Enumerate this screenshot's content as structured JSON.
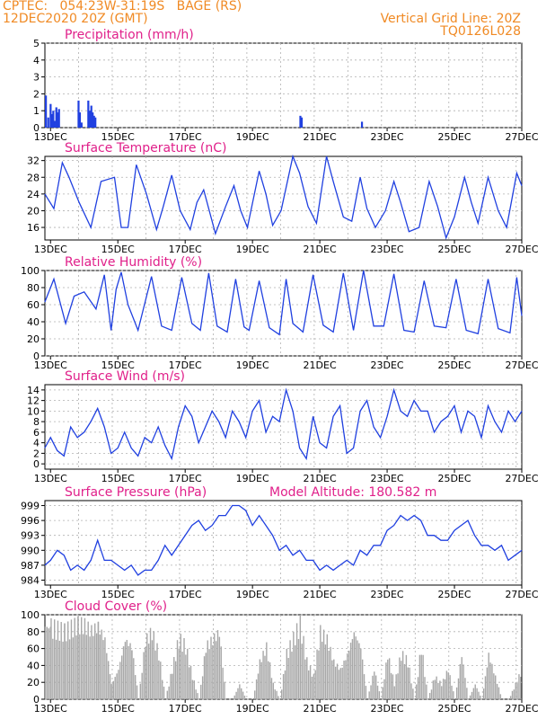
{
  "header": {
    "line1": "CPTEC:   054:23W-31:19S   BAGE (RS)",
    "line2": "12DEC2020 20Z (GMT)",
    "vertical_grid": "Vertical Grid Line: 20Z",
    "code": "TQ0126L028"
  },
  "colors": {
    "header": "#f08a24",
    "title": "#e0208a",
    "series": "#2040e0",
    "cloud": "#a8a8a8",
    "grid": "#b0b0b0"
  },
  "time_axis": {
    "start_day": 12.833,
    "end_day": 27.0,
    "tick_labels": [
      "13DEC",
      "15DEC",
      "17DEC",
      "19DEC",
      "21DEC",
      "23DEC",
      "25DEC",
      "27DEC"
    ],
    "tick_days": [
      13,
      15,
      17,
      19,
      21,
      23,
      25,
      27
    ]
  },
  "chart_data": [
    {
      "type": "bar",
      "title": "Precipitation (mm/h)",
      "ylim": [
        0,
        5
      ],
      "yticks": [
        "0",
        "1",
        "2",
        "3",
        "4",
        "5"
      ],
      "x": [
        12.86,
        12.93,
        13.0,
        13.04,
        13.08,
        13.12,
        13.17,
        13.21,
        13.25,
        13.83,
        13.87,
        13.92,
        14.12,
        14.17,
        14.21,
        14.25,
        14.29,
        14.33,
        20.42,
        20.46,
        22.25
      ],
      "values": [
        1.9,
        0.6,
        1.4,
        0.8,
        1.0,
        0.4,
        1.2,
        0.9,
        1.1,
        1.6,
        0.9,
        0.3,
        1.6,
        1.0,
        1.3,
        0.9,
        0.7,
        0.6,
        0.7,
        0.6,
        0.35
      ]
    },
    {
      "type": "line",
      "title": "Surface Temperature (nC)",
      "ylim": [
        13,
        33
      ],
      "yticks": [
        "16",
        "20",
        "24",
        "28",
        "32"
      ],
      "x": [
        12.83,
        13.1,
        13.35,
        13.55,
        13.85,
        14.2,
        14.5,
        14.9,
        15.1,
        15.3,
        15.55,
        15.85,
        16.15,
        16.35,
        16.6,
        16.85,
        17.15,
        17.35,
        17.55,
        17.9,
        18.2,
        18.45,
        18.65,
        18.85,
        19.2,
        19.4,
        19.6,
        19.85,
        20.2,
        20.4,
        20.65,
        20.9,
        21.2,
        21.4,
        21.7,
        21.95,
        22.2,
        22.4,
        22.65,
        22.95,
        23.2,
        23.4,
        23.65,
        23.95,
        24.25,
        24.5,
        24.75,
        25.0,
        25.3,
        25.5,
        25.7,
        26.0,
        26.3,
        26.55,
        26.85,
        27.0
      ],
      "values": [
        24,
        20.5,
        31.5,
        28,
        22,
        16,
        27,
        28,
        16,
        16,
        31,
        24,
        15.5,
        21,
        28.5,
        20,
        15.5,
        22,
        25,
        14.5,
        21,
        26,
        20,
        16,
        29.5,
        24,
        16.5,
        20,
        33,
        29,
        21,
        17,
        33,
        27,
        18.5,
        17.5,
        28,
        20.5,
        16,
        20,
        27,
        22,
        15,
        16,
        27,
        21,
        13.5,
        18.5,
        28,
        22,
        17,
        28,
        20,
        16,
        29,
        26
      ]
    },
    {
      "type": "line",
      "title": "Relative Humidity (%)",
      "ylim": [
        0,
        100
      ],
      "yticks": [
        "0",
        "20",
        "40",
        "60",
        "80",
        "100"
      ],
      "x": [
        12.83,
        13.1,
        13.45,
        13.7,
        14.0,
        14.35,
        14.6,
        14.8,
        14.95,
        15.1,
        15.3,
        15.6,
        16.0,
        16.3,
        16.6,
        16.9,
        17.2,
        17.45,
        17.7,
        17.95,
        18.25,
        18.5,
        18.75,
        18.9,
        19.2,
        19.5,
        19.8,
        20.0,
        20.2,
        20.5,
        20.8,
        21.1,
        21.4,
        21.7,
        22.0,
        22.3,
        22.6,
        22.9,
        23.2,
        23.5,
        23.8,
        24.1,
        24.4,
        24.75,
        25.05,
        25.35,
        25.7,
        26.0,
        26.3,
        26.65,
        26.85,
        27.0
      ],
      "values": [
        63,
        90,
        38,
        70,
        75,
        55,
        95,
        30,
        78,
        98,
        60,
        30,
        93,
        35,
        30,
        92,
        38,
        30,
        97,
        35,
        28,
        90,
        34,
        30,
        88,
        33,
        25,
        90,
        38,
        28,
        95,
        36,
        28,
        97,
        30,
        100,
        35,
        35,
        96,
        30,
        28,
        88,
        35,
        33,
        90,
        30,
        26,
        90,
        32,
        27,
        92,
        47
      ]
    },
    {
      "type": "line",
      "title": "Surface Wind (m/s)",
      "ylim": [
        -1,
        15
      ],
      "yticks": [
        "0",
        "2",
        "4",
        "6",
        "8",
        "10",
        "12",
        "14"
      ],
      "x": [
        12.83,
        13.0,
        13.2,
        13.4,
        13.6,
        13.8,
        14.0,
        14.2,
        14.4,
        14.6,
        14.8,
        15.0,
        15.2,
        15.4,
        15.6,
        15.8,
        16.0,
        16.2,
        16.4,
        16.6,
        16.8,
        17.0,
        17.2,
        17.4,
        17.6,
        17.8,
        18.0,
        18.2,
        18.4,
        18.6,
        18.8,
        19.0,
        19.2,
        19.4,
        19.6,
        19.8,
        20.0,
        20.2,
        20.4,
        20.6,
        20.8,
        21.0,
        21.2,
        21.4,
        21.6,
        21.8,
        22.0,
        22.2,
        22.4,
        22.6,
        22.8,
        23.0,
        23.2,
        23.4,
        23.6,
        23.8,
        24.0,
        24.2,
        24.4,
        24.6,
        24.8,
        25.0,
        25.2,
        25.4,
        25.6,
        25.8,
        26.0,
        26.2,
        26.4,
        26.6,
        26.8,
        27.0
      ],
      "values": [
        3,
        5,
        2.5,
        1.5,
        7,
        5,
        6,
        8,
        10.5,
        7,
        2,
        3,
        6,
        3,
        1.5,
        5,
        4,
        7,
        3.5,
        1,
        7,
        11,
        9,
        4,
        7,
        10,
        8,
        5,
        10,
        8,
        5,
        10,
        12,
        6,
        9,
        8,
        14,
        10,
        3,
        1,
        9,
        4,
        3,
        9,
        11,
        2,
        3,
        10,
        12,
        7,
        5,
        9,
        14,
        10,
        9,
        12,
        10,
        10,
        6,
        8,
        9,
        11,
        6,
        10,
        9,
        5,
        11,
        8,
        6,
        10,
        8,
        10
      ]
    },
    {
      "type": "line",
      "title": "Surface Pressure (hPa)",
      "annotation": "Model Altitude: 180.582 m",
      "ylim": [
        983,
        1000
      ],
      "yticks": [
        "984",
        "987",
        "990",
        "993",
        "996",
        "999"
      ],
      "x": [
        12.83,
        13.0,
        13.2,
        13.4,
        13.6,
        13.8,
        14.0,
        14.2,
        14.4,
        14.6,
        14.8,
        15.0,
        15.2,
        15.4,
        15.6,
        15.8,
        16.0,
        16.2,
        16.4,
        16.6,
        16.8,
        17.0,
        17.2,
        17.4,
        17.6,
        17.8,
        18.0,
        18.2,
        18.4,
        18.6,
        18.8,
        19.0,
        19.2,
        19.4,
        19.6,
        19.8,
        20.0,
        20.2,
        20.4,
        20.6,
        20.8,
        21.0,
        21.2,
        21.4,
        21.6,
        21.8,
        22.0,
        22.2,
        22.4,
        22.6,
        22.8,
        23.0,
        23.2,
        23.4,
        23.6,
        23.8,
        24.0,
        24.2,
        24.4,
        24.6,
        24.8,
        25.0,
        25.2,
        25.4,
        25.6,
        25.8,
        26.0,
        26.2,
        26.4,
        26.6,
        26.8,
        27.0
      ],
      "values": [
        987,
        988,
        990,
        989,
        986,
        987,
        986,
        988,
        992,
        988,
        988,
        987,
        986,
        987,
        985,
        986,
        986,
        988,
        991,
        989,
        991,
        993,
        995,
        996,
        994,
        995,
        997,
        997,
        999,
        999,
        998,
        995,
        997,
        995,
        993,
        990,
        991,
        989,
        990,
        988,
        988,
        986,
        987,
        986,
        987,
        988,
        987,
        990,
        989,
        991,
        991,
        994,
        995,
        997,
        996,
        997,
        996,
        993,
        993,
        992,
        992,
        994,
        995,
        996,
        993,
        991,
        991,
        990,
        991,
        988,
        989,
        990
      ]
    },
    {
      "type": "area",
      "title": "Cloud Cover (%)",
      "ylim": [
        0,
        100
      ],
      "yticks": [
        "0",
        "20",
        "40",
        "60",
        "80",
        "100"
      ],
      "x": [
        12.83,
        13.0,
        13.2,
        13.4,
        13.6,
        13.8,
        14.0,
        14.2,
        14.4,
        14.6,
        14.8,
        15.0,
        15.2,
        15.4,
        15.6,
        15.8,
        16.0,
        16.2,
        16.4,
        16.6,
        16.8,
        17.0,
        17.2,
        17.4,
        17.6,
        17.8,
        18.0,
        18.2,
        18.4,
        18.6,
        18.8,
        19.0,
        19.2,
        19.4,
        19.6,
        19.8,
        20.0,
        20.2,
        20.4,
        20.6,
        20.8,
        21.0,
        21.2,
        21.4,
        21.6,
        21.8,
        22.0,
        22.2,
        22.4,
        22.6,
        22.8,
        23.0,
        23.2,
        23.4,
        23.6,
        23.8,
        24.0,
        24.2,
        24.4,
        24.6,
        24.8,
        25.0,
        25.2,
        25.4,
        25.6,
        25.8,
        26.0,
        26.2,
        26.4,
        26.6,
        26.8,
        27.0
      ],
      "values": [
        98,
        96,
        93,
        90,
        95,
        100,
        99,
        92,
        98,
        80,
        20,
        40,
        80,
        70,
        0,
        78,
        90,
        60,
        0,
        40,
        80,
        70,
        30,
        0,
        70,
        80,
        90,
        0,
        0,
        20,
        0,
        0,
        50,
        70,
        20,
        0,
        60,
        80,
        100,
        50,
        30,
        90,
        80,
        50,
        40,
        60,
        90,
        70,
        0,
        40,
        0,
        60,
        20,
        60,
        50,
        0,
        70,
        0,
        30,
        20,
        40,
        0,
        60,
        0,
        20,
        0,
        60,
        30,
        0,
        0,
        20,
        40
      ]
    }
  ]
}
